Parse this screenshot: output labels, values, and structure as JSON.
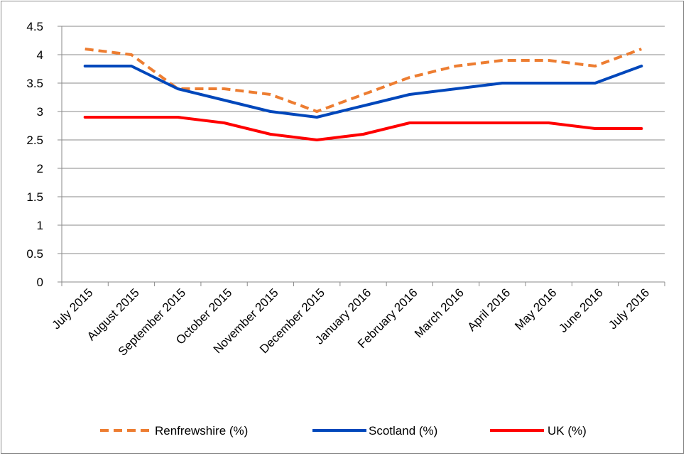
{
  "chart_data": {
    "type": "line",
    "title": "",
    "xlabel": "",
    "ylabel": "",
    "categories": [
      "July 2015",
      "August 2015",
      "September 2015",
      "October 2015",
      "November 2015",
      "December 2015",
      "January 2016",
      "February 2016",
      "March 2016",
      "April 2016",
      "May 2016",
      "June 2016",
      "July 2016"
    ],
    "ylim": [
      0,
      4.5
    ],
    "yticks": [
      "0",
      "0.5",
      "1",
      "1.5",
      "2",
      "2.5",
      "3",
      "3.5",
      "4",
      "4.5"
    ],
    "grid": true,
    "legend_position": "bottom",
    "series": [
      {
        "name": "Renfrewshire (%)",
        "color": "#ed7d31",
        "dash": "dashed",
        "values": [
          4.1,
          4.0,
          3.4,
          3.4,
          3.3,
          3.0,
          3.3,
          3.6,
          3.8,
          3.9,
          3.9,
          3.8,
          4.1
        ]
      },
      {
        "name": "Scotland (%)",
        "color": "#0047bb",
        "dash": "solid",
        "values": [
          3.8,
          3.8,
          3.4,
          3.2,
          3.0,
          2.9,
          3.1,
          3.3,
          3.4,
          3.5,
          3.5,
          3.5,
          3.8
        ]
      },
      {
        "name": "UK (%)",
        "color": "#ff0000",
        "dash": "solid",
        "values": [
          2.9,
          2.9,
          2.9,
          2.8,
          2.6,
          2.5,
          2.6,
          2.8,
          2.8,
          2.8,
          2.8,
          2.7,
          2.7
        ]
      }
    ]
  }
}
